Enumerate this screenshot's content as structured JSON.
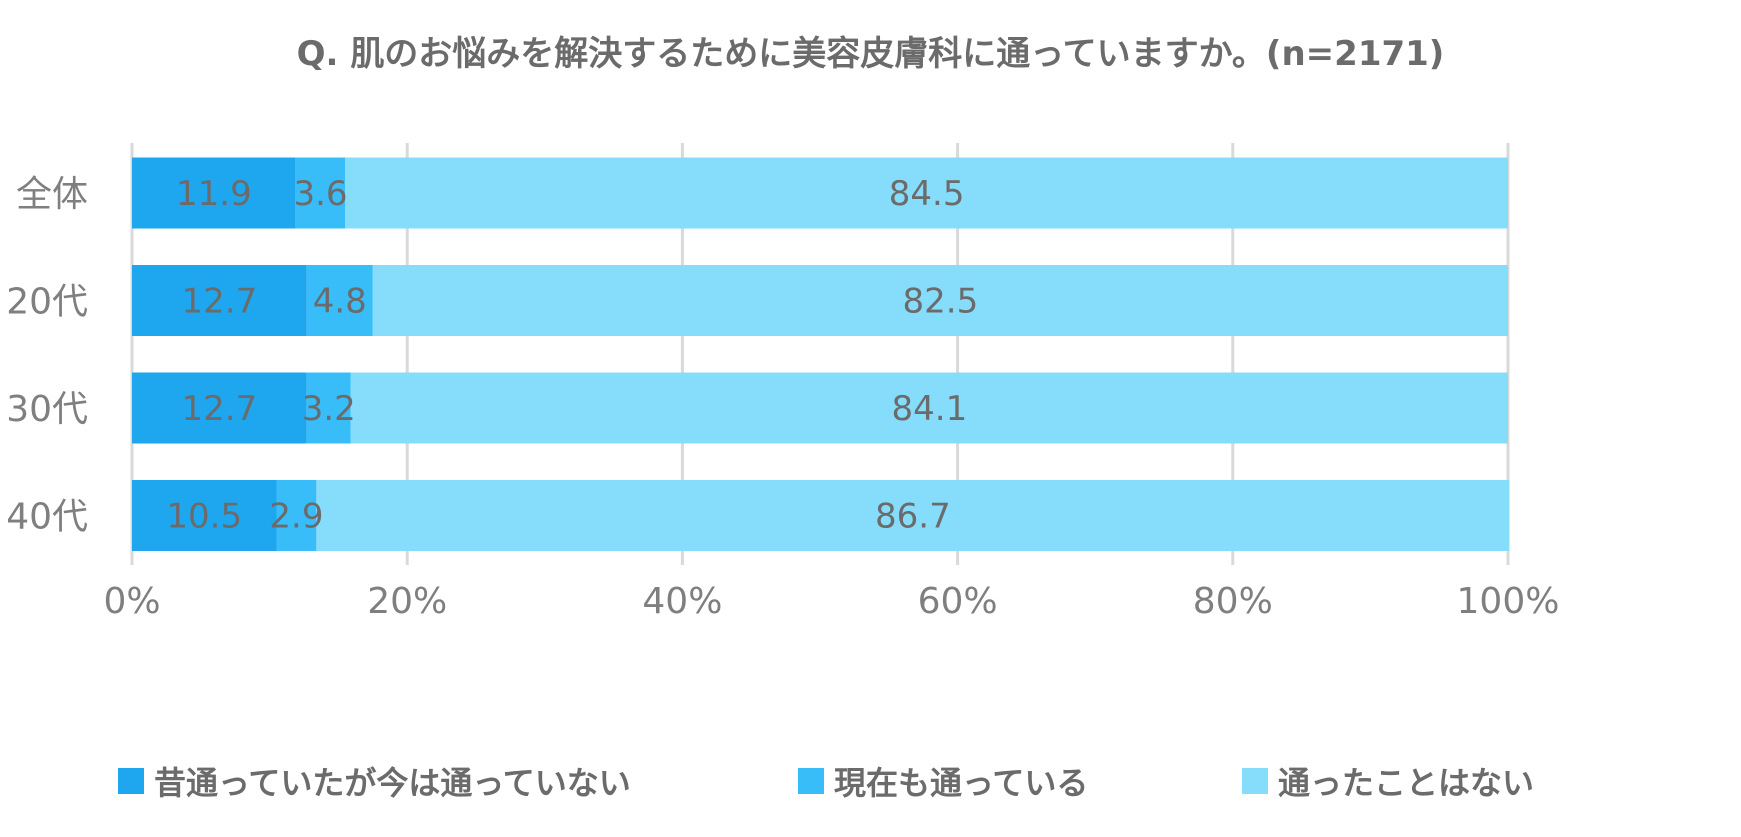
{
  "chart_data": {
    "type": "bar",
    "orientation": "horizontal",
    "stacked": true,
    "title": "Q. 肌のお悩みを解決するために美容皮膚科に通っていますか。(n=2171)",
    "categories": [
      "全体",
      "20代",
      "30代",
      "40代"
    ],
    "series": [
      {
        "name": "昔通っていたが今は通っていない",
        "color": "#1ea7ee",
        "values": [
          11.9,
          12.7,
          12.7,
          10.5
        ]
      },
      {
        "name": "現在も通っている",
        "color": "#38bdf8",
        "values": [
          3.6,
          4.8,
          3.2,
          2.9
        ]
      },
      {
        "name": "通ったことはない",
        "color": "#86dcfb",
        "values": [
          84.5,
          82.5,
          84.1,
          86.7
        ]
      }
    ],
    "xlim": [
      0,
      100
    ],
    "x_ticks": [
      "0%",
      "20%",
      "40%",
      "60%",
      "80%",
      "100%"
    ],
    "grid": true,
    "legend_position": "bottom",
    "label_color": "#6b6b6b"
  }
}
